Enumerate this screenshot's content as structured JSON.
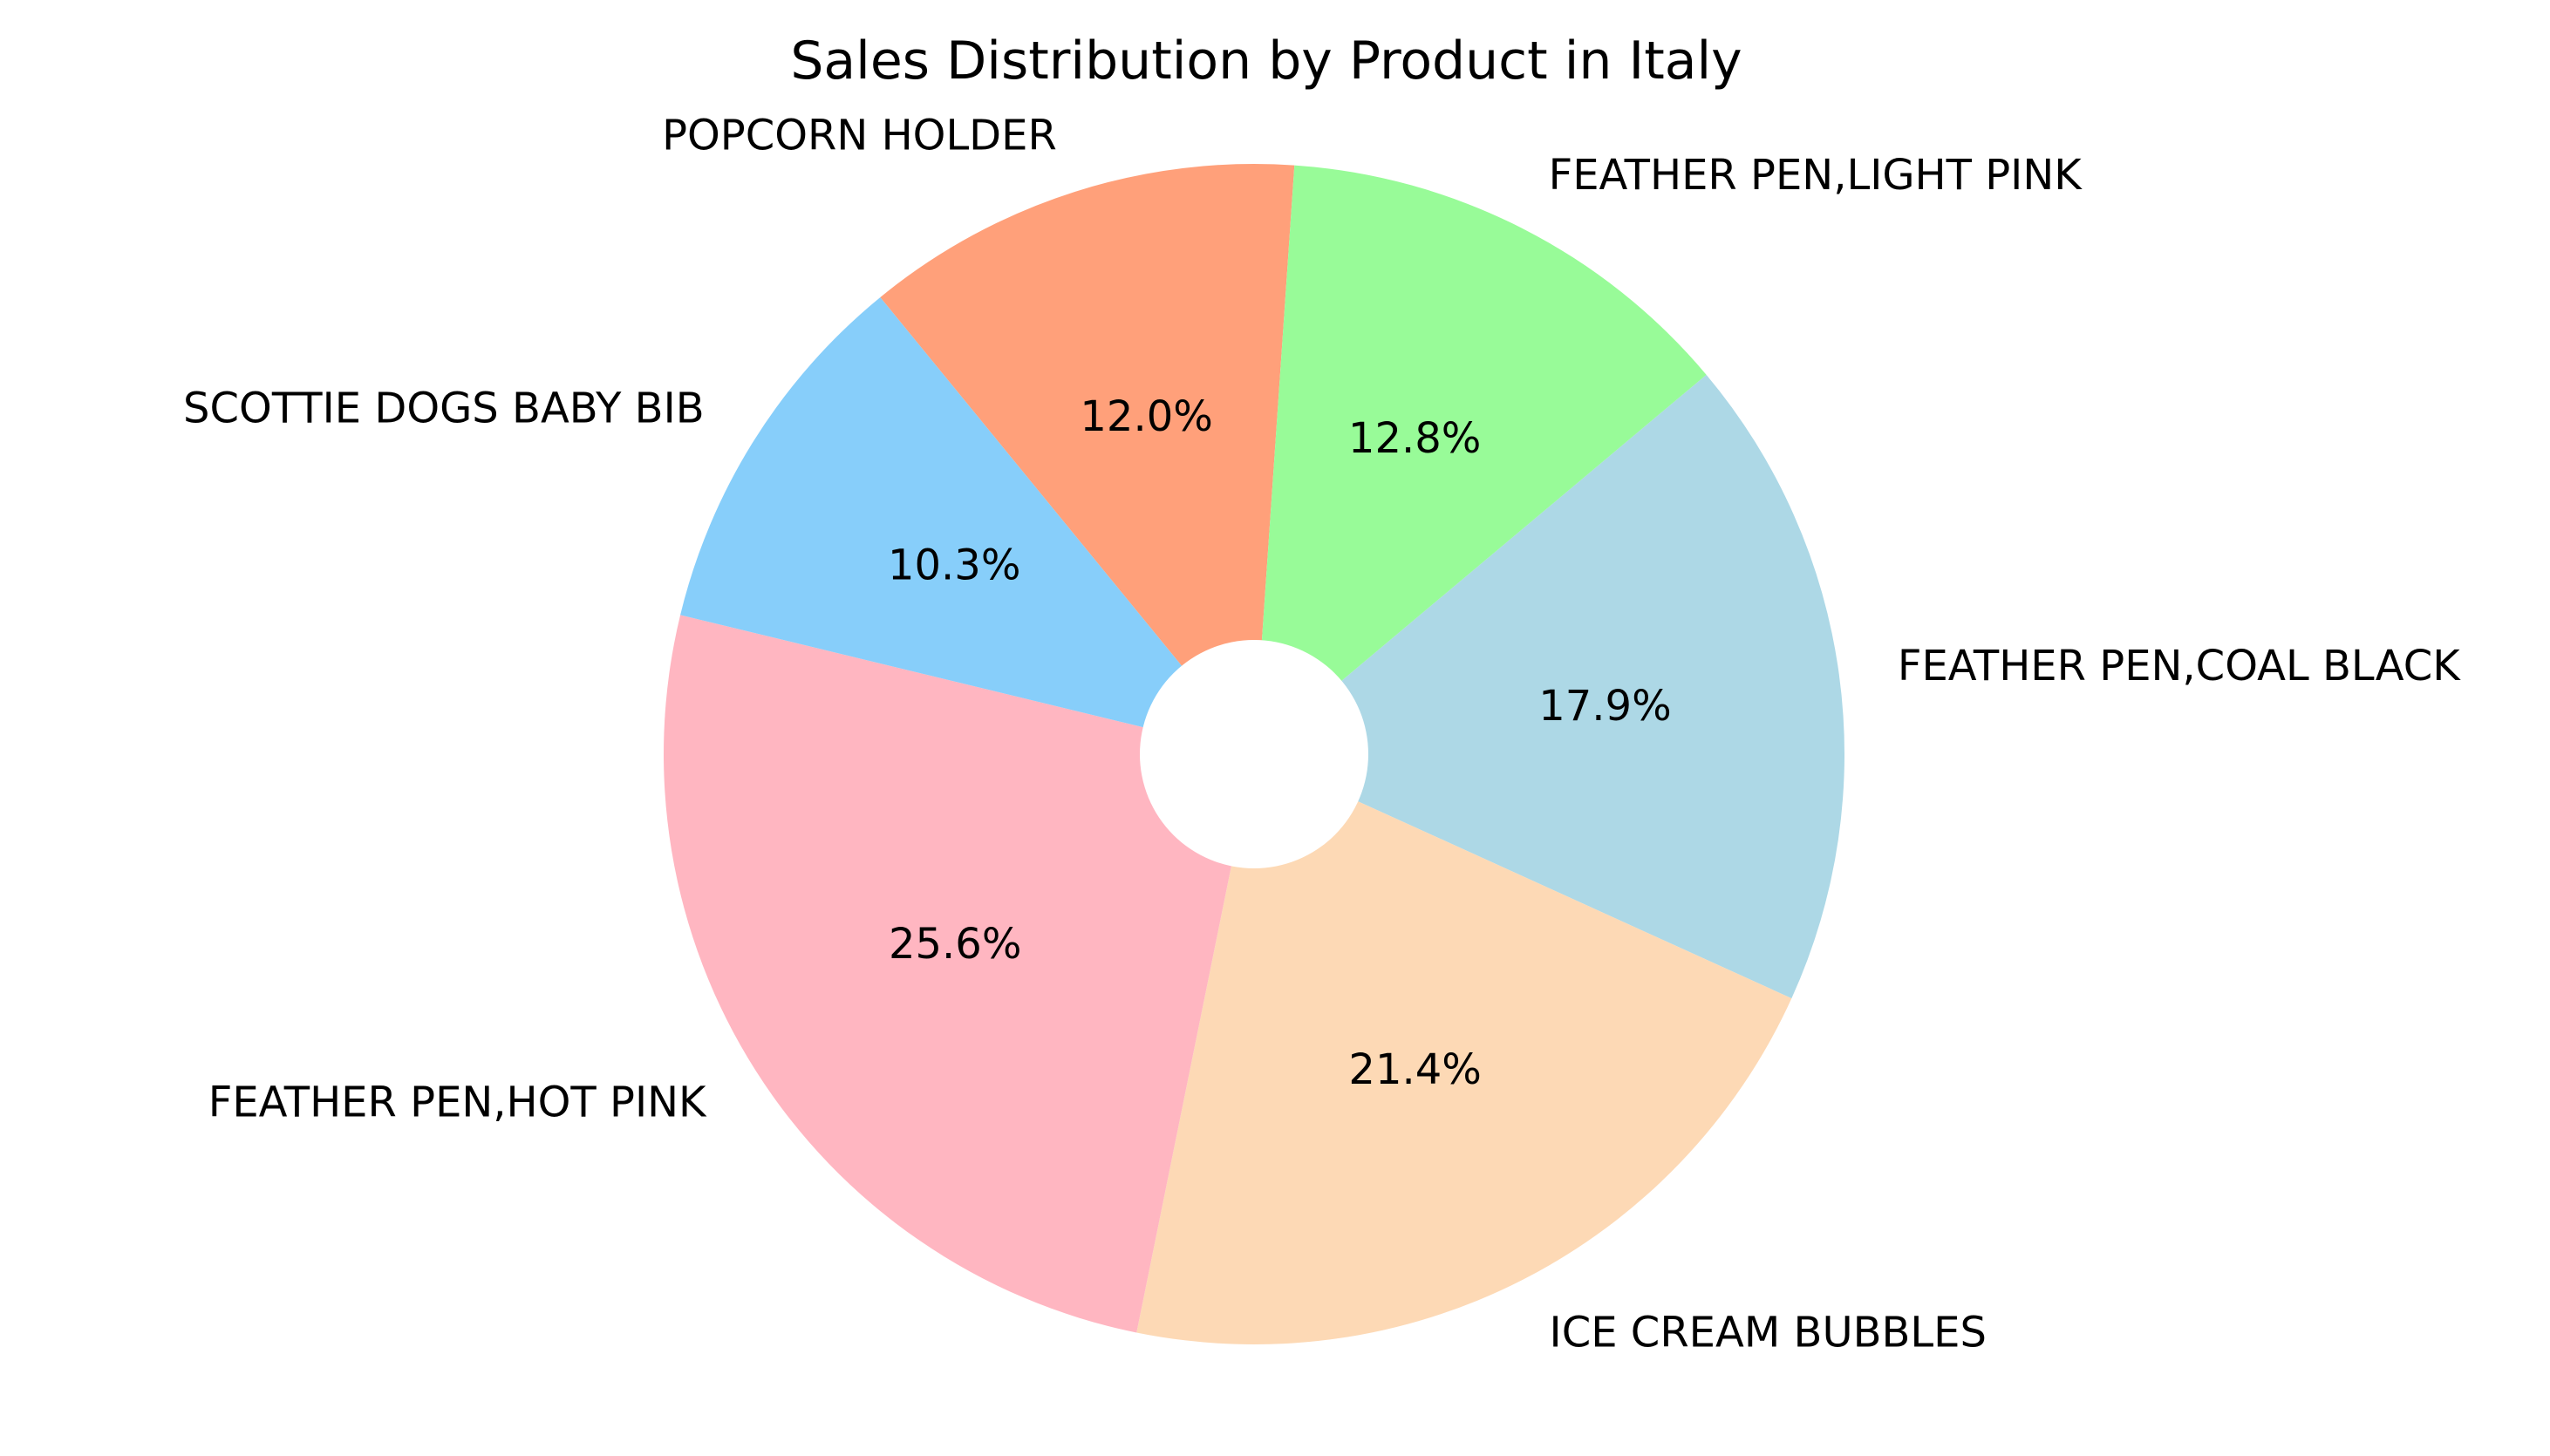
{
  "chart_data": {
    "type": "pie",
    "title": "Sales Distribution by Product in Italy",
    "start_angle_deg": 40,
    "direction": "clockwise",
    "donut_hole": true,
    "slices": [
      {
        "label": "FEATHER PEN,COAL BLACK",
        "value": 17.9,
        "pct_label": "17.9%",
        "color": "#ADD8E6"
      },
      {
        "label": "ICE CREAM BUBBLES",
        "value": 21.4,
        "pct_label": "21.4%",
        "color": "#FDD9B5"
      },
      {
        "label": "FEATHER PEN,HOT PINK",
        "value": 25.6,
        "pct_label": "25.6%",
        "color": "#FFB6C1"
      },
      {
        "label": "SCOTTIE DOGS BABY BIB",
        "value": 10.3,
        "pct_label": "10.3%",
        "color": "#87CEFA"
      },
      {
        "label": "POPCORN HOLDER",
        "value": 12.0,
        "pct_label": "12.0%",
        "color": "#FFA07A"
      },
      {
        "label": "FEATHER PEN,LIGHT PINK",
        "value": 12.8,
        "pct_label": "12.8%",
        "color": "#98FB98"
      }
    ]
  }
}
